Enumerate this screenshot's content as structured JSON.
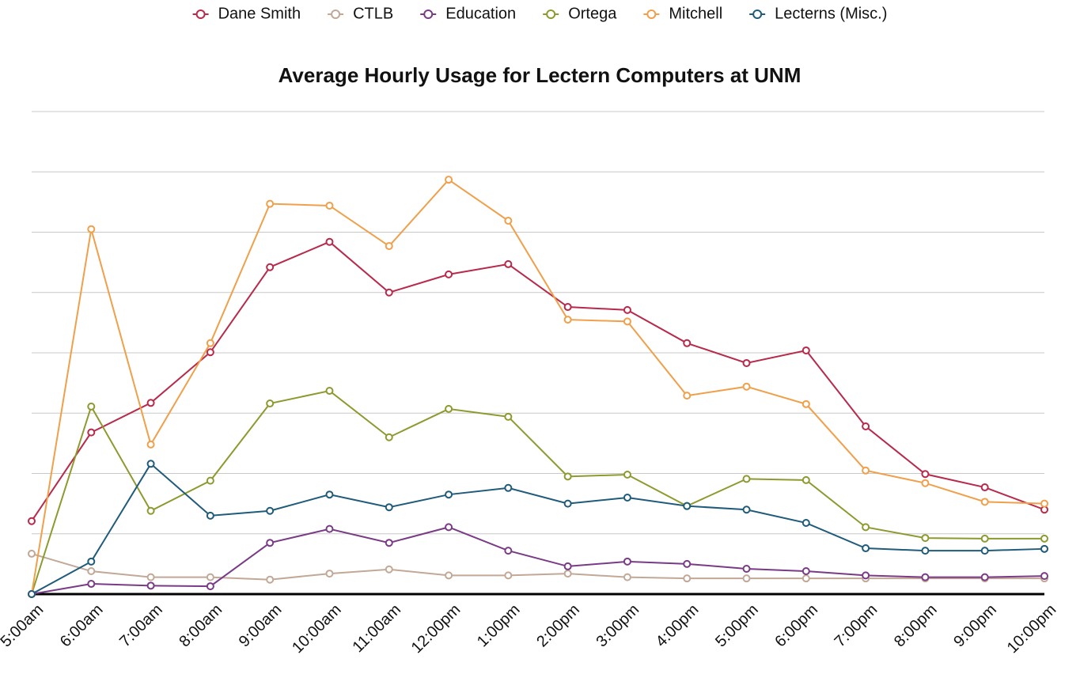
{
  "chart_data": {
    "type": "line",
    "title": "Average Hourly Usage for Lectern Computers at UNM",
    "categories": [
      "5:00am",
      "6:00am",
      "7:00am",
      "8:00am",
      "9:00am",
      "10:00am",
      "11:00am",
      "12:00pm",
      "1:00pm",
      "2:00pm",
      "3:00pm",
      "4:00pm",
      "5:00pm",
      "6:00pm",
      "7:00pm",
      "8:00pm",
      "9:00pm",
      "10:00pm"
    ],
    "ylim": [
      0,
      8
    ],
    "yticks": [
      0,
      1,
      2,
      3,
      4,
      5,
      6,
      7,
      8
    ],
    "grid": true,
    "legend": "top",
    "series": [
      {
        "name": "Dane Smith",
        "color": "#b8294a",
        "values": [
          1.21,
          2.68,
          3.17,
          4.01,
          5.42,
          5.84,
          5.0,
          5.3,
          5.47,
          4.76,
          4.71,
          4.16,
          3.83,
          4.04,
          2.78,
          1.99,
          1.77,
          1.4
        ]
      },
      {
        "name": "CTLB",
        "color": "#c2a896",
        "values": [
          0.67,
          0.38,
          0.28,
          0.28,
          0.24,
          0.34,
          0.41,
          0.31,
          0.31,
          0.34,
          0.28,
          0.26,
          0.26,
          0.26,
          0.26,
          0.26,
          0.26,
          0.26
        ]
      },
      {
        "name": "Education",
        "color": "#7a3b86",
        "values": [
          0,
          0.17,
          0.14,
          0.13,
          0.85,
          1.08,
          0.85,
          1.11,
          0.72,
          0.46,
          0.54,
          0.5,
          0.42,
          0.38,
          0.31,
          0.28,
          0.28,
          0.3
        ]
      },
      {
        "name": "Ortega",
        "color": "#8e9a2e",
        "values": [
          0,
          3.11,
          1.38,
          1.88,
          3.16,
          3.37,
          2.6,
          3.07,
          2.94,
          1.95,
          1.98,
          1.46,
          1.91,
          1.89,
          1.11,
          0.93,
          0.92,
          0.92
        ]
      },
      {
        "name": "Mitchell",
        "color": "#f0a04a",
        "values": [
          0,
          6.05,
          2.48,
          4.16,
          6.47,
          6.44,
          5.77,
          6.87,
          6.19,
          4.55,
          4.52,
          3.29,
          3.44,
          3.15,
          2.05,
          1.84,
          1.53,
          1.5
        ]
      },
      {
        "name": "Lecterns (Misc.)",
        "color": "#1f5b7a",
        "values": [
          0,
          0.54,
          2.16,
          1.3,
          1.38,
          1.65,
          1.44,
          1.65,
          1.76,
          1.5,
          1.6,
          1.46,
          1.4,
          1.18,
          0.76,
          0.72,
          0.72,
          0.75
        ]
      }
    ]
  }
}
